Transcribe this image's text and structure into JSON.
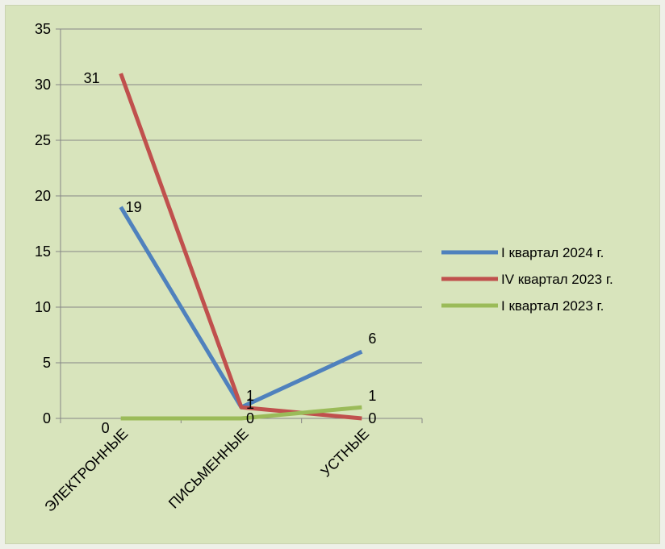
{
  "chart_data": {
    "type": "line",
    "categories": [
      "ЭЛЕКТРОННЫЕ",
      "ПИСЬМЕННЫЕ",
      "УСТНЫЕ"
    ],
    "series": [
      {
        "name": "I квартал 2024 г.",
        "values": [
          19,
          1,
          6
        ],
        "color": "#4f81bd"
      },
      {
        "name": "IV квартал 2023 г.",
        "values": [
          31,
          1,
          0
        ],
        "color": "#c0504d"
      },
      {
        "name": "I квартал 2023 г.",
        "values": [
          0,
          0,
          1
        ],
        "color": "#9bbb59"
      }
    ],
    "y_ticks": [
      "0",
      "5",
      "10",
      "15",
      "20",
      "25",
      "30",
      "35"
    ],
    "ylim": [
      0,
      35
    ],
    "grid": true,
    "legend_position": "right",
    "title": "",
    "xlabel": "",
    "ylabel": ""
  }
}
